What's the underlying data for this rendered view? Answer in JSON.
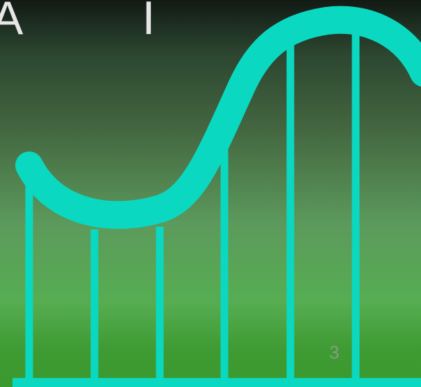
{
  "slide": {
    "title_fragment": "A I",
    "page_number": "3"
  },
  "colors": {
    "track": "#0bd8c0",
    "background_top": "#121a14",
    "background_bottom": "#399a2e",
    "title_text": "#e6e6e6",
    "page_number_text": "#8a9a8a"
  },
  "icons": {
    "illustration": "roller-coaster-icon"
  }
}
